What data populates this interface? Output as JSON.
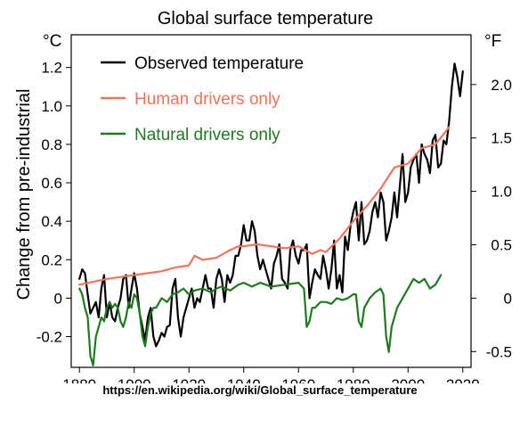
{
  "chart_data": {
    "type": "line",
    "title": "Global surface temperature",
    "ylabel": "Change from pre-industrial",
    "y_unit_left": "°C",
    "y_unit_right": "°F",
    "xlim": [
      1877,
      2023
    ],
    "ylim": [
      -0.36,
      1.37
    ],
    "x_ticks": [
      "1880",
      "1900",
      "1920",
      "1940",
      "1960",
      "1980",
      "2000",
      "2020"
    ],
    "y_ticks_left": [
      "-0.2",
      "0",
      "0.2",
      "0.4",
      "0.6",
      "0.8",
      "1.0",
      "1.2"
    ],
    "y_ticks_right": [
      "-0.5",
      "0",
      "0.5",
      "1.0",
      "1.5",
      "2.0"
    ],
    "grid": false,
    "legend_position": "top-left",
    "series": [
      {
        "name": "Observed temperature",
        "color": "#000000",
        "x": [
          1880,
          1881,
          1882,
          1883,
          1884,
          1885,
          1886,
          1887,
          1888,
          1889,
          1890,
          1891,
          1892,
          1893,
          1894,
          1895,
          1896,
          1897,
          1898,
          1899,
          1900,
          1901,
          1902,
          1903,
          1904,
          1905,
          1906,
          1907,
          1908,
          1909,
          1910,
          1911,
          1912,
          1913,
          1914,
          1915,
          1916,
          1917,
          1918,
          1919,
          1920,
          1921,
          1922,
          1923,
          1924,
          1925,
          1926,
          1927,
          1928,
          1929,
          1930,
          1931,
          1932,
          1933,
          1934,
          1935,
          1936,
          1937,
          1938,
          1939,
          1940,
          1941,
          1942,
          1943,
          1944,
          1945,
          1946,
          1947,
          1948,
          1949,
          1950,
          1951,
          1952,
          1953,
          1954,
          1955,
          1956,
          1957,
          1958,
          1959,
          1960,
          1961,
          1962,
          1963,
          1964,
          1965,
          1966,
          1967,
          1968,
          1969,
          1970,
          1971,
          1972,
          1973,
          1974,
          1975,
          1976,
          1977,
          1978,
          1979,
          1980,
          1981,
          1982,
          1983,
          1984,
          1985,
          1986,
          1987,
          1988,
          1989,
          1990,
          1991,
          1992,
          1993,
          1994,
          1995,
          1996,
          1997,
          1998,
          1999,
          2000,
          2001,
          2002,
          2003,
          2004,
          2005,
          2006,
          2007,
          2008,
          2009,
          2010,
          2011,
          2012,
          2013,
          2014,
          2015,
          2016,
          2017,
          2018,
          2019,
          2020
        ],
        "values": [
          0.1,
          0.15,
          0.13,
          0.02,
          -0.08,
          -0.05,
          -0.02,
          -0.1,
          0.05,
          0.12,
          -0.1,
          -0.02,
          -0.1,
          -0.12,
          -0.05,
          0.0,
          0.1,
          0.12,
          -0.05,
          0.05,
          0.13,
          0.05,
          -0.08,
          -0.15,
          -0.22,
          -0.1,
          -0.05,
          -0.2,
          -0.25,
          -0.22,
          -0.18,
          -0.2,
          -0.15,
          -0.14,
          0.05,
          0.1,
          -0.1,
          -0.2,
          -0.1,
          -0.05,
          0.0,
          0.05,
          -0.05,
          0.0,
          -0.02,
          0.05,
          0.12,
          0.05,
          0.05,
          -0.05,
          0.1,
          0.15,
          0.1,
          -0.02,
          0.12,
          0.08,
          0.12,
          0.22,
          0.22,
          0.28,
          0.38,
          0.3,
          0.3,
          0.4,
          0.35,
          0.22,
          0.15,
          0.2,
          0.15,
          0.1,
          0.05,
          0.18,
          0.22,
          0.28,
          0.1,
          0.08,
          0.05,
          0.25,
          0.3,
          0.22,
          0.18,
          0.25,
          0.25,
          0.28,
          0.0,
          0.08,
          0.15,
          0.12,
          0.1,
          0.22,
          0.15,
          0.05,
          0.15,
          0.3,
          0.05,
          0.12,
          0.03,
          0.32,
          0.25,
          0.38,
          0.45,
          0.5,
          0.3,
          0.5,
          0.28,
          0.3,
          0.35,
          0.45,
          0.5,
          0.42,
          0.55,
          0.5,
          0.3,
          0.35,
          0.42,
          0.55,
          0.42,
          0.58,
          0.75,
          0.5,
          0.55,
          0.68,
          0.72,
          0.75,
          0.6,
          0.8,
          0.75,
          0.72,
          0.65,
          0.82,
          0.85,
          0.68,
          0.7,
          0.82,
          0.8,
          0.92,
          1.1,
          1.22,
          1.15,
          1.05,
          1.18
        ]
      },
      {
        "name": "Human drivers only",
        "color": "#f4735b",
        "x": [
          1880,
          1890,
          1900,
          1910,
          1915,
          1920,
          1922,
          1925,
          1930,
          1935,
          1938,
          1940,
          1945,
          1950,
          1955,
          1960,
          1965,
          1968,
          1970,
          1975,
          1980,
          1985,
          1990,
          1995,
          2000,
          2005,
          2010,
          2015
        ],
        "values": [
          0.07,
          0.1,
          0.12,
          0.14,
          0.16,
          0.17,
          0.22,
          0.2,
          0.21,
          0.25,
          0.27,
          0.27,
          0.28,
          0.27,
          0.26,
          0.27,
          0.23,
          0.25,
          0.24,
          0.31,
          0.4,
          0.48,
          0.57,
          0.68,
          0.7,
          0.78,
          0.8,
          0.89
        ]
      },
      {
        "name": "Natural drivers only",
        "color": "#1f7a1f",
        "x": [
          1880,
          1881,
          1882,
          1883,
          1884,
          1885,
          1886,
          1887,
          1888,
          1889,
          1890,
          1891,
          1892,
          1893,
          1894,
          1895,
          1896,
          1897,
          1898,
          1899,
          1900,
          1901,
          1902,
          1903,
          1904,
          1905,
          1906,
          1907,
          1908,
          1910,
          1912,
          1914,
          1916,
          1918,
          1920,
          1922,
          1925,
          1928,
          1930,
          1932,
          1935,
          1938,
          1940,
          1943,
          1946,
          1950,
          1955,
          1960,
          1962,
          1963,
          1964,
          1965,
          1966,
          1968,
          1970,
          1972,
          1974,
          1976,
          1978,
          1980,
          1981,
          1982,
          1983,
          1984,
          1986,
          1988,
          1990,
          1991,
          1992,
          1993,
          1994,
          1996,
          1998,
          2000,
          2002,
          2004,
          2006,
          2008,
          2010,
          2012
        ],
        "values": [
          0.05,
          0.02,
          -0.05,
          -0.1,
          -0.3,
          -0.35,
          -0.2,
          -0.15,
          -0.1,
          -0.12,
          -0.05,
          -0.02,
          -0.05,
          -0.03,
          -0.05,
          -0.12,
          -0.15,
          -0.1,
          -0.02,
          -0.05,
          0.02,
          0.0,
          -0.08,
          -0.2,
          -0.25,
          -0.15,
          -0.08,
          -0.05,
          -0.05,
          0.0,
          -0.02,
          0.02,
          0.03,
          0.05,
          0.02,
          0.04,
          0.05,
          0.03,
          0.05,
          0.06,
          0.04,
          0.07,
          0.08,
          0.06,
          0.08,
          0.06,
          0.07,
          0.08,
          0.05,
          -0.15,
          -0.12,
          -0.05,
          -0.05,
          -0.02,
          -0.02,
          -0.03,
          0.0,
          -0.01,
          0.0,
          0.02,
          0.02,
          -0.12,
          -0.15,
          -0.05,
          0.0,
          0.03,
          0.05,
          0.02,
          -0.2,
          -0.28,
          -0.15,
          -0.05,
          0.0,
          0.05,
          0.1,
          0.08,
          0.1,
          0.05,
          0.07,
          0.12
        ]
      }
    ]
  },
  "source_caption": "https://en.wikipedia.org/wiki/Global_surface_temperature"
}
